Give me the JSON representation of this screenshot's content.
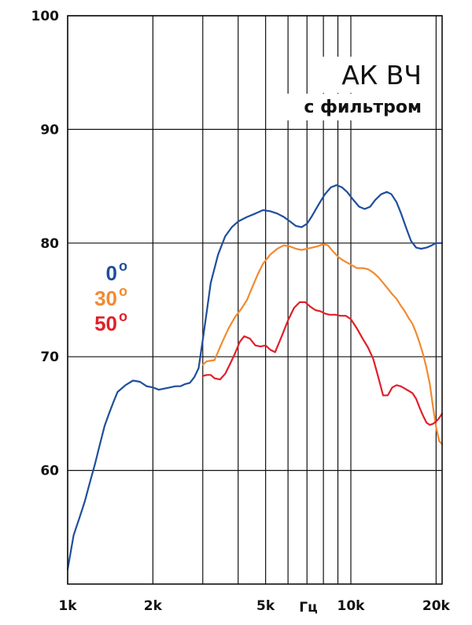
{
  "chart_data": {
    "type": "line",
    "title": "АК ВЧ",
    "subtitle": "с фильтром",
    "xlabel": "Гц",
    "ylabel": "",
    "x_scale": "log",
    "xlim": [
      1000,
      21000
    ],
    "ylim": [
      50,
      100
    ],
    "x_ticks": [
      {
        "value": 1000,
        "label": "1k"
      },
      {
        "value": 2000,
        "label": "2k"
      },
      {
        "value": 5000,
        "label": "5k"
      },
      {
        "value": 10000,
        "label": "10k"
      },
      {
        "value": 20000,
        "label": "20k"
      }
    ],
    "y_ticks": [
      {
        "value": 60,
        "label": "60"
      },
      {
        "value": 70,
        "label": "70"
      },
      {
        "value": 80,
        "label": "80"
      },
      {
        "value": 90,
        "label": "90"
      },
      {
        "value": 100,
        "label": "100"
      }
    ],
    "x_gridlines": [
      1000,
      2000,
      3000,
      4000,
      5000,
      6000,
      7000,
      8000,
      9000,
      10000,
      20000
    ],
    "y_gridlines": [
      60,
      70,
      80,
      90,
      100
    ],
    "grid": true,
    "legend_position": "left-middle",
    "series": [
      {
        "name": "0",
        "name_sup": "o",
        "color": "#1f4e9c",
        "points": [
          [
            1000,
            51.3
          ],
          [
            1050,
            54.3
          ],
          [
            1100,
            55.8
          ],
          [
            1150,
            57.3
          ],
          [
            1200,
            59.0
          ],
          [
            1250,
            60.6
          ],
          [
            1300,
            62.3
          ],
          [
            1350,
            63.9
          ],
          [
            1400,
            65.0
          ],
          [
            1450,
            66.0
          ],
          [
            1500,
            66.9
          ],
          [
            1600,
            67.5
          ],
          [
            1700,
            67.9
          ],
          [
            1800,
            67.8
          ],
          [
            1900,
            67.4
          ],
          [
            2000,
            67.3
          ],
          [
            2100,
            67.1
          ],
          [
            2200,
            67.2
          ],
          [
            2300,
            67.3
          ],
          [
            2400,
            67.4
          ],
          [
            2500,
            67.4
          ],
          [
            2600,
            67.6
          ],
          [
            2700,
            67.7
          ],
          [
            2800,
            68.2
          ],
          [
            2900,
            69.0
          ],
          [
            3000,
            71.5
          ],
          [
            3100,
            74.0
          ],
          [
            3200,
            76.5
          ],
          [
            3400,
            79.0
          ],
          [
            3600,
            80.6
          ],
          [
            3800,
            81.4
          ],
          [
            4000,
            81.9
          ],
          [
            4300,
            82.3
          ],
          [
            4600,
            82.6
          ],
          [
            4900,
            82.9
          ],
          [
            5200,
            82.8
          ],
          [
            5500,
            82.6
          ],
          [
            5800,
            82.3
          ],
          [
            6100,
            81.9
          ],
          [
            6400,
            81.5
          ],
          [
            6700,
            81.4
          ],
          [
            7000,
            81.7
          ],
          [
            7300,
            82.4
          ],
          [
            7700,
            83.4
          ],
          [
            8100,
            84.3
          ],
          [
            8500,
            84.9
          ],
          [
            8900,
            85.1
          ],
          [
            9300,
            84.9
          ],
          [
            9700,
            84.5
          ],
          [
            10200,
            83.8
          ],
          [
            10700,
            83.2
          ],
          [
            11200,
            83.0
          ],
          [
            11700,
            83.2
          ],
          [
            12200,
            83.8
          ],
          [
            12800,
            84.3
          ],
          [
            13400,
            84.5
          ],
          [
            13900,
            84.3
          ],
          [
            14500,
            83.6
          ],
          [
            15100,
            82.5
          ],
          [
            15700,
            81.3
          ],
          [
            16300,
            80.2
          ],
          [
            17000,
            79.6
          ],
          [
            17700,
            79.5
          ],
          [
            18500,
            79.6
          ],
          [
            19300,
            79.8
          ],
          [
            20000,
            80.0
          ],
          [
            20500,
            80.0
          ],
          [
            21000,
            80.0
          ]
        ]
      },
      {
        "name": "30",
        "name_sup": "o",
        "color": "#f28a30",
        "points": [
          [
            3000,
            69.3
          ],
          [
            3100,
            69.6
          ],
          [
            3300,
            69.7
          ],
          [
            3500,
            71.2
          ],
          [
            3700,
            72.5
          ],
          [
            3900,
            73.5
          ],
          [
            4100,
            74.2
          ],
          [
            4300,
            75.0
          ],
          [
            4500,
            76.2
          ],
          [
            4700,
            77.3
          ],
          [
            4900,
            78.2
          ],
          [
            5200,
            79.0
          ],
          [
            5500,
            79.5
          ],
          [
            5800,
            79.8
          ],
          [
            6100,
            79.7
          ],
          [
            6400,
            79.5
          ],
          [
            6700,
            79.4
          ],
          [
            7000,
            79.5
          ],
          [
            7300,
            79.6
          ],
          [
            7600,
            79.7
          ],
          [
            8000,
            79.9
          ],
          [
            8300,
            79.8
          ],
          [
            8700,
            79.2
          ],
          [
            9100,
            78.7
          ],
          [
            9500,
            78.4
          ],
          [
            10000,
            78.1
          ],
          [
            10500,
            77.8
          ],
          [
            11000,
            77.8
          ],
          [
            11500,
            77.7
          ],
          [
            12000,
            77.4
          ],
          [
            12500,
            77.0
          ],
          [
            13000,
            76.5
          ],
          [
            13500,
            76.0
          ],
          [
            14000,
            75.5
          ],
          [
            14500,
            75.1
          ],
          [
            15000,
            74.5
          ],
          [
            15500,
            74.0
          ],
          [
            16000,
            73.4
          ],
          [
            16500,
            72.9
          ],
          [
            17000,
            72.1
          ],
          [
            17500,
            71.2
          ],
          [
            18000,
            70.2
          ],
          [
            18500,
            69.0
          ],
          [
            19000,
            67.6
          ],
          [
            19500,
            65.6
          ],
          [
            20000,
            63.8
          ],
          [
            20500,
            62.6
          ],
          [
            21000,
            62.3
          ]
        ]
      },
      {
        "name": "50",
        "name_sup": "o",
        "color": "#e0202a",
        "points": [
          [
            3000,
            68.3
          ],
          [
            3100,
            68.4
          ],
          [
            3200,
            68.4
          ],
          [
            3300,
            68.1
          ],
          [
            3450,
            68.0
          ],
          [
            3600,
            68.5
          ],
          [
            3750,
            69.4
          ],
          [
            3900,
            70.3
          ],
          [
            4050,
            71.3
          ],
          [
            4200,
            71.8
          ],
          [
            4400,
            71.6
          ],
          [
            4600,
            71.0
          ],
          [
            4800,
            70.9
          ],
          [
            5000,
            71.0
          ],
          [
            5200,
            70.6
          ],
          [
            5400,
            70.4
          ],
          [
            5700,
            71.8
          ],
          [
            6000,
            73.2
          ],
          [
            6300,
            74.3
          ],
          [
            6600,
            74.8
          ],
          [
            6900,
            74.8
          ],
          [
            7200,
            74.4
          ],
          [
            7500,
            74.1
          ],
          [
            7800,
            74.0
          ],
          [
            8100,
            73.8
          ],
          [
            8400,
            73.7
          ],
          [
            8800,
            73.7
          ],
          [
            9200,
            73.6
          ],
          [
            9600,
            73.6
          ],
          [
            10000,
            73.3
          ],
          [
            10500,
            72.5
          ],
          [
            11000,
            71.6
          ],
          [
            11500,
            70.8
          ],
          [
            12000,
            69.8
          ],
          [
            12500,
            68.2
          ],
          [
            13000,
            66.6
          ],
          [
            13500,
            66.6
          ],
          [
            14000,
            67.3
          ],
          [
            14500,
            67.5
          ],
          [
            15000,
            67.4
          ],
          [
            15500,
            67.2
          ],
          [
            16000,
            67.0
          ],
          [
            16500,
            66.8
          ],
          [
            17000,
            66.3
          ],
          [
            17500,
            65.5
          ],
          [
            18000,
            64.8
          ],
          [
            18500,
            64.2
          ],
          [
            19000,
            64.0
          ],
          [
            19500,
            64.1
          ],
          [
            20000,
            64.3
          ],
          [
            20500,
            64.6
          ],
          [
            21000,
            65.0
          ]
        ]
      }
    ]
  }
}
